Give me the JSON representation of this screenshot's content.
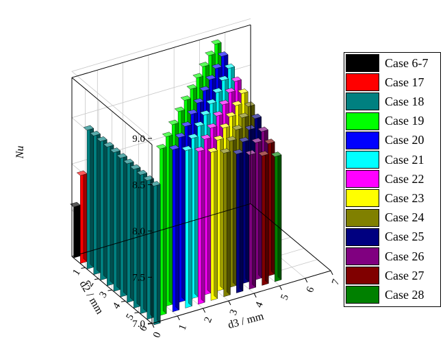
{
  "chart_data": {
    "type": "bar3d",
    "zlabel": "Nu",
    "xlabel": "d3 / mm",
    "ylabel": "d2 / mm",
    "zlim": [
      7.0,
      9.25
    ],
    "z_ticks": [
      "7.0",
      "7.5",
      "8.0",
      "8.5",
      "9.0"
    ],
    "x_ticks": [
      "0",
      "1",
      "2",
      "3",
      "4",
      "5",
      "6",
      "7"
    ],
    "y_ticks": [
      "1",
      "2",
      "3",
      "4",
      "5",
      "6"
    ],
    "grid": true,
    "legend_position": "right",
    "series": [
      {
        "name": "Case 6-7",
        "color": "#000000",
        "bars": [
          {
            "x": 0,
            "y": 0,
            "z": 7.55
          }
        ]
      },
      {
        "name": "Case 17",
        "color": "#ff0000",
        "bars": [
          {
            "x": 0,
            "y": 0.5,
            "z": 7.95
          }
        ]
      },
      {
        "name": "Case 18",
        "color": "#008080",
        "bars": [
          {
            "x": 0,
            "y": 1.0,
            "z": 8.5
          },
          {
            "x": 0,
            "y": 1.5,
            "z": 8.5
          },
          {
            "x": 0,
            "y": 2.0,
            "z": 8.5
          },
          {
            "x": 0,
            "y": 2.5,
            "z": 8.5
          },
          {
            "x": 0,
            "y": 3.0,
            "z": 8.5
          },
          {
            "x": 0,
            "y": 3.5,
            "z": 8.5
          },
          {
            "x": 0,
            "y": 4.0,
            "z": 8.5
          },
          {
            "x": 0,
            "y": 4.5,
            "z": 8.5
          },
          {
            "x": 0,
            "y": 5.0,
            "z": 8.5
          },
          {
            "x": 0,
            "y": 5.5,
            "z": 8.5
          },
          {
            "x": 0,
            "y": 6.0,
            "z": 8.5
          }
        ]
      },
      {
        "name": "Case 19",
        "color": "#00ff00",
        "bars": [
          {
            "x": 0.5,
            "y": 5.5,
            "z": 8.8
          },
          {
            "x": 1.0,
            "y": 5.0,
            "z": 8.83
          },
          {
            "x": 1.5,
            "y": 4.5,
            "z": 8.86
          },
          {
            "x": 2.0,
            "y": 4.0,
            "z": 8.9
          },
          {
            "x": 2.5,
            "y": 3.5,
            "z": 8.92
          },
          {
            "x": 3.0,
            "y": 3.0,
            "z": 8.94
          },
          {
            "x": 3.5,
            "y": 2.5,
            "z": 8.96
          },
          {
            "x": 4.0,
            "y": 2.0,
            "z": 8.98
          },
          {
            "x": 4.5,
            "y": 1.5,
            "z": 9.0
          },
          {
            "x": 5.0,
            "y": 1.0,
            "z": 9.02
          }
        ]
      },
      {
        "name": "Case 20",
        "color": "#0000ff",
        "bars": [
          {
            "x": 1.0,
            "y": 5.5,
            "z": 8.75
          },
          {
            "x": 1.5,
            "y": 5.0,
            "z": 8.78
          },
          {
            "x": 2.0,
            "y": 4.5,
            "z": 8.8
          },
          {
            "x": 2.5,
            "y": 4.0,
            "z": 8.83
          },
          {
            "x": 3.0,
            "y": 3.5,
            "z": 8.85
          },
          {
            "x": 3.5,
            "y": 3.0,
            "z": 8.88
          },
          {
            "x": 4.0,
            "y": 2.5,
            "z": 8.9
          },
          {
            "x": 4.5,
            "y": 2.0,
            "z": 8.92
          },
          {
            "x": 5.0,
            "y": 1.5,
            "z": 8.95
          }
        ]
      },
      {
        "name": "Case 21",
        "color": "#00ffff",
        "bars": [
          {
            "x": 1.5,
            "y": 5.5,
            "z": 8.7
          },
          {
            "x": 2.0,
            "y": 5.0,
            "z": 8.73
          },
          {
            "x": 2.5,
            "y": 4.5,
            "z": 8.76
          },
          {
            "x": 3.0,
            "y": 4.0,
            "z": 8.78
          },
          {
            "x": 3.5,
            "y": 3.5,
            "z": 8.8
          },
          {
            "x": 4.0,
            "y": 3.0,
            "z": 8.82
          },
          {
            "x": 4.5,
            "y": 2.5,
            "z": 8.85
          },
          {
            "x": 5.0,
            "y": 2.0,
            "z": 8.88
          }
        ]
      },
      {
        "name": "Case 22",
        "color": "#ff00ff",
        "bars": [
          {
            "x": 2.0,
            "y": 5.5,
            "z": 8.65
          },
          {
            "x": 2.5,
            "y": 5.0,
            "z": 8.68
          },
          {
            "x": 3.0,
            "y": 4.5,
            "z": 8.7
          },
          {
            "x": 3.5,
            "y": 4.0,
            "z": 8.73
          },
          {
            "x": 4.0,
            "y": 3.5,
            "z": 8.75
          },
          {
            "x": 4.5,
            "y": 3.0,
            "z": 8.78
          },
          {
            "x": 5.0,
            "y": 2.5,
            "z": 8.8
          }
        ]
      },
      {
        "name": "Case 23",
        "color": "#ffff00",
        "bars": [
          {
            "x": 2.5,
            "y": 5.5,
            "z": 8.6
          },
          {
            "x": 3.0,
            "y": 5.0,
            "z": 8.63
          },
          {
            "x": 3.5,
            "y": 4.5,
            "z": 8.66
          },
          {
            "x": 4.0,
            "y": 4.0,
            "z": 8.68
          },
          {
            "x": 4.5,
            "y": 3.5,
            "z": 8.7
          },
          {
            "x": 5.0,
            "y": 3.0,
            "z": 8.73
          }
        ]
      },
      {
        "name": "Case 24",
        "color": "#808000",
        "bars": [
          {
            "x": 3.0,
            "y": 5.5,
            "z": 8.55
          },
          {
            "x": 3.5,
            "y": 5.0,
            "z": 8.58
          },
          {
            "x": 4.0,
            "y": 4.5,
            "z": 8.6
          },
          {
            "x": 4.5,
            "y": 4.0,
            "z": 8.63
          },
          {
            "x": 5.0,
            "y": 3.5,
            "z": 8.65
          }
        ]
      },
      {
        "name": "Case 25",
        "color": "#000080",
        "bars": [
          {
            "x": 3.5,
            "y": 5.5,
            "z": 8.5
          },
          {
            "x": 4.0,
            "y": 5.0,
            "z": 8.53
          },
          {
            "x": 4.5,
            "y": 4.5,
            "z": 8.56
          },
          {
            "x": 5.0,
            "y": 4.0,
            "z": 8.58
          }
        ]
      },
      {
        "name": "Case 26",
        "color": "#800080",
        "bars": [
          {
            "x": 4.0,
            "y": 5.5,
            "z": 8.45
          },
          {
            "x": 4.5,
            "y": 5.0,
            "z": 8.48
          },
          {
            "x": 5.0,
            "y": 4.5,
            "z": 8.5
          }
        ]
      },
      {
        "name": "Case 27",
        "color": "#800000",
        "bars": [
          {
            "x": 4.5,
            "y": 5.5,
            "z": 8.4
          },
          {
            "x": 5.0,
            "y": 5.0,
            "z": 8.43
          }
        ]
      },
      {
        "name": "Case 28",
        "color": "#008000",
        "bars": [
          {
            "x": 5.0,
            "y": 5.5,
            "z": 8.35
          }
        ]
      }
    ]
  }
}
